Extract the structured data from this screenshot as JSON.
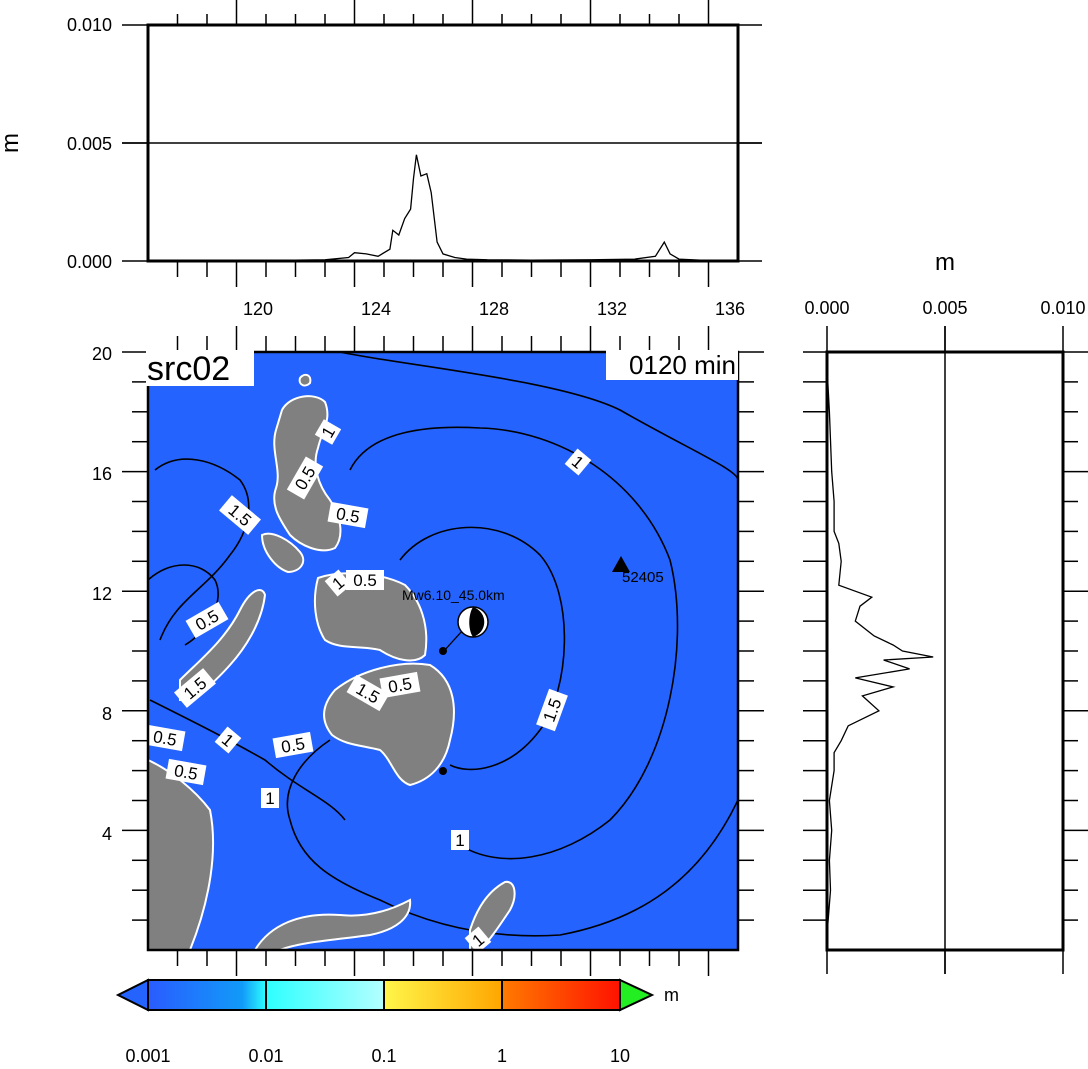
{
  "source_label": "src02",
  "time_label": "0120 min",
  "top_panel": {
    "ylabel": "m",
    "yticks": [
      "0.000",
      "0.005",
      "0.010"
    ],
    "xticks": [
      "120",
      "124",
      "128",
      "132",
      "136"
    ],
    "chart_data": {
      "type": "line",
      "xlim": [
        117,
        137
      ],
      "ylim": [
        0,
        0.01
      ],
      "x": [
        121,
        122,
        123,
        123.8,
        124,
        124.4,
        124.8,
        125.2,
        125.3,
        125.5,
        125.7,
        125.9,
        126,
        126.1,
        126.25,
        126.45,
        126.6,
        126.8,
        127,
        127.4,
        127.8,
        128.5,
        130,
        132,
        133.5,
        134.2,
        134.5,
        134.7,
        135,
        136
      ],
      "y": [
        2e-05,
        4e-05,
        5e-05,
        0.00015,
        0.00035,
        0.0003,
        0.0002,
        0.0005,
        0.0013,
        0.0011,
        0.0018,
        0.0022,
        0.0035,
        0.0045,
        0.0036,
        0.0037,
        0.0029,
        0.0008,
        0.0003,
        0.00015,
        8e-05,
        5e-05,
        4e-05,
        5e-05,
        8e-05,
        0.0002,
        0.0008,
        0.0003,
        8e-05,
        2e-05
      ]
    }
  },
  "right_panel": {
    "xlabel": "m",
    "xticks": [
      "0.000",
      "0.005",
      "0.010"
    ],
    "chart_data": {
      "type": "line",
      "xlim": [
        0,
        0.01
      ],
      "ylim": [
        0,
        20
      ],
      "y": [
        2,
        3,
        4,
        5,
        6,
        6.6,
        7,
        7.5,
        8,
        8.5,
        8.8,
        9.1,
        9.4,
        9.7,
        9.8,
        10,
        10.2,
        10.5,
        11,
        11.5,
        11.8,
        12.2,
        13,
        13.6,
        14,
        15,
        16,
        18
      ],
      "x": [
        0.00015,
        0.0001,
        0.0002,
        0.0001,
        0.0003,
        0.0003,
        0.0006,
        0.0009,
        0.0022,
        0.0015,
        0.0028,
        0.0012,
        0.0035,
        0.0024,
        0.0045,
        0.0032,
        0.0028,
        0.002,
        0.0012,
        0.0014,
        0.0019,
        0.0005,
        0.0006,
        0.0005,
        0.0003,
        0.0003,
        0.0002,
        0.0001
      ]
    }
  },
  "map": {
    "lon_range": [
      117,
      137
    ],
    "lat_range": [
      0,
      20
    ],
    "yticks": [
      "4",
      "8",
      "12",
      "16",
      "20"
    ],
    "epicenter_label": "Mw6.10_45.0km",
    "station_label": "52405",
    "contour_labels": [
      "1",
      "0.5",
      "1.5",
      "0.5",
      "1",
      "0.5",
      "0.5",
      "1.5",
      "0.5",
      "1.5",
      "0.5",
      "1",
      "0.5",
      "1.5",
      "1",
      "1",
      "1",
      "0.5",
      "1"
    ],
    "colors": {
      "ocean": "#2563FF",
      "land": "#808080",
      "station": "#000000"
    }
  },
  "colorbar": {
    "unit": "m",
    "labels": [
      "0.001",
      "0.01",
      "0.1",
      "1",
      "10"
    ],
    "colors": {
      "under": "#2563FF",
      "over": "#22EE22"
    }
  }
}
